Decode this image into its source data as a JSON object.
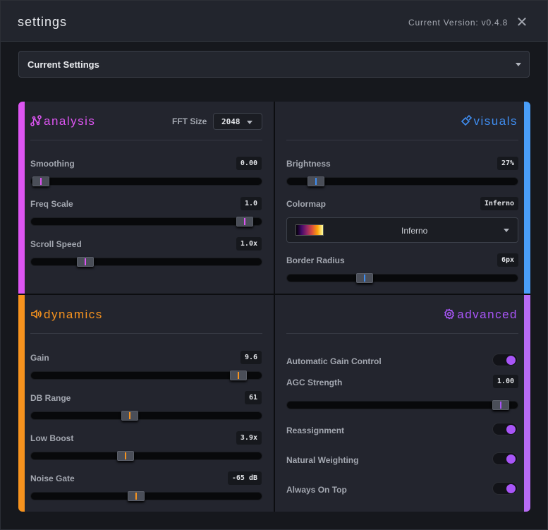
{
  "header": {
    "title": "settings",
    "version": "Current Version: v0.4.8"
  },
  "preset": {
    "selected": "Current Settings"
  },
  "colors": {
    "analysis": "#dd55f2",
    "visuals": "#3f8df0",
    "dynamics": "#f7931e",
    "advanced": "#a855f7"
  },
  "analysis": {
    "title": "analysis",
    "fft_label": "FFT Size",
    "fft_value": "2048",
    "sliders": [
      {
        "label": "Smoothing",
        "value": "0.00",
        "fraction": 0.0
      },
      {
        "label": "Freq Scale",
        "value": "1.0",
        "fraction": 0.96
      },
      {
        "label": "Scroll Speed",
        "value": "1.0x",
        "fraction": 0.21
      }
    ]
  },
  "visuals": {
    "title": "visuals",
    "brightness": {
      "label": "Brightness",
      "value": "27%",
      "fraction": 0.09
    },
    "colormap": {
      "label": "Colormap",
      "value": "Inferno",
      "selected": "Inferno"
    },
    "border_radius": {
      "label": "Border Radius",
      "value": "6px",
      "fraction": 0.32
    }
  },
  "dynamics": {
    "title": "dynamics",
    "sliders": [
      {
        "label": "Gain",
        "value": "9.6",
        "fraction": 0.93
      },
      {
        "label": "DB Range",
        "value": "61",
        "fraction": 0.42
      },
      {
        "label": "Low Boost",
        "value": "3.9x",
        "fraction": 0.4
      },
      {
        "label": "Noise Gate",
        "value": "-65 dB",
        "fraction": 0.45
      }
    ]
  },
  "advanced": {
    "title": "advanced",
    "agc": {
      "label": "Automatic Gain Control",
      "on": true
    },
    "agc_strength": {
      "label": "AGC Strength",
      "value": "1.00",
      "fraction": 0.96
    },
    "toggles": [
      {
        "label": "Reassignment",
        "on": true
      },
      {
        "label": "Natural Weighting",
        "on": true
      },
      {
        "label": "Always On Top",
        "on": true
      }
    ]
  }
}
